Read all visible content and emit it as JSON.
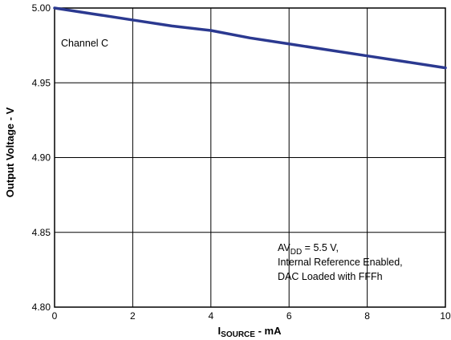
{
  "chart_data": {
    "type": "line",
    "title": "",
    "xlabel": {
      "main": "I",
      "sub": "SOURCE",
      "tail": " - mA"
    },
    "ylabel": "Output Voltage - V",
    "xlim": [
      0,
      10
    ],
    "ylim": [
      4.8,
      5.0
    ],
    "x_ticks": [
      0,
      2,
      4,
      6,
      8,
      10
    ],
    "x_tick_labels": [
      "0",
      "2",
      "4",
      "6",
      "8",
      "10"
    ],
    "y_ticks": [
      4.8,
      4.85,
      4.9,
      4.95,
      5.0
    ],
    "y_tick_labels": [
      "4.80",
      "4.85",
      "4.90",
      "4.95",
      "5.00"
    ],
    "grid": true,
    "line_color": "#2b3990",
    "series": [
      {
        "name": "Channel C",
        "x": [
          0,
          1,
          2,
          3,
          4,
          5,
          6,
          7,
          8,
          9,
          10
        ],
        "y": [
          5.0,
          4.996,
          4.992,
          4.988,
          4.985,
          4.98,
          4.976,
          4.972,
          4.968,
          4.964,
          4.96
        ]
      }
    ],
    "annotations": {
      "channel": "Channel C",
      "cond_prefix": "AV",
      "cond_sub": "DD",
      "cond_line1_tail": " = 5.5 V,",
      "cond_line2": "Internal Reference Enabled,",
      "cond_line3": "DAC Loaded with FFFh"
    }
  }
}
